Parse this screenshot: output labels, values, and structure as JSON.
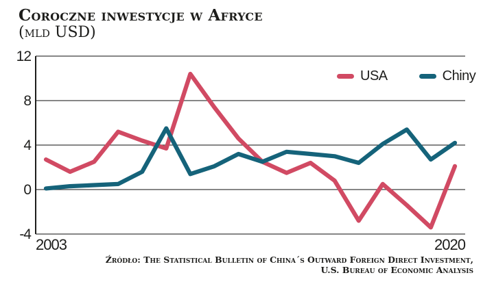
{
  "header": {
    "title": "Coroczne inwestycje w Afryce",
    "subtitle": "(mld USD)"
  },
  "legend": [
    {
      "label": "USA",
      "color": "#d14a63"
    },
    {
      "label": "Chiny",
      "color": "#15637a"
    }
  ],
  "source": {
    "line1": "Źródło: The Statistical Bulletin of China´s Outward Foreign Direct Investment,",
    "line2": "U.S. Bureau of Economic Analysis"
  },
  "colors": {
    "usa": "#d14a63",
    "chiny": "#15637a",
    "text": "#1d1d1b",
    "grid": "#3f3f3f",
    "axis": "#1d1d1b",
    "background": "#ffffff"
  },
  "chart_data": {
    "type": "line",
    "title": "Coroczne inwestycje w Afryce",
    "subtitle": "(mld USD)",
    "xlabel": "",
    "ylabel": "mld USD",
    "x": [
      2003,
      2004,
      2005,
      2006,
      2007,
      2008,
      2009,
      2010,
      2011,
      2012,
      2013,
      2014,
      2015,
      2016,
      2017,
      2018,
      2019,
      2020
    ],
    "series": [
      {
        "name": "USA",
        "color": "#d14a63",
        "values": [
          2.7,
          1.6,
          2.5,
          5.2,
          4.4,
          3.7,
          10.4,
          7.4,
          4.6,
          2.5,
          1.5,
          2.4,
          0.8,
          -2.8,
          0.5,
          -1.4,
          -3.4,
          2.1
        ]
      },
      {
        "name": "Chiny",
        "color": "#15637a",
        "values": [
          0.1,
          0.3,
          0.4,
          0.5,
          1.6,
          5.5,
          1.4,
          2.1,
          3.2,
          2.5,
          3.4,
          3.2,
          3.0,
          2.4,
          4.1,
          5.4,
          2.7,
          4.2
        ]
      }
    ],
    "ylim": [
      -4,
      12
    ],
    "yticks": [
      12,
      8,
      4,
      0,
      -4
    ],
    "xtick_labels": [
      "2003",
      "2020"
    ],
    "grid": true,
    "legend_position": "top-right"
  }
}
